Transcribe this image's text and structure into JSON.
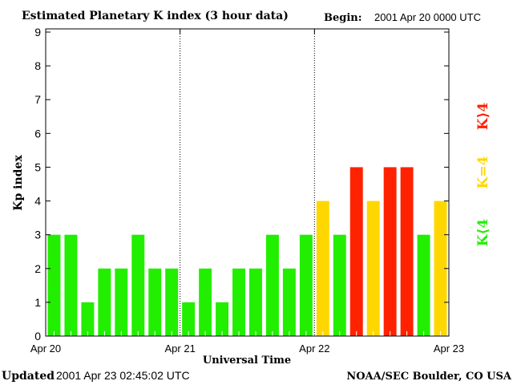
{
  "chart_data": {
    "type": "bar",
    "title": "Estimated Planetary K index (3 hour data)",
    "begin_label": "Begin:",
    "begin_value": "2001 Apr 20 0000 UTC",
    "xlabel": "Universal Time",
    "ylabel": "Kp index",
    "ylim": [
      0,
      9
    ],
    "yticks": [
      "0",
      "1",
      "2",
      "3",
      "4",
      "5",
      "6",
      "7",
      "8",
      "9"
    ],
    "xticks": [
      "Apr 20",
      "Apr 21",
      "Apr 22",
      "Apr 23"
    ],
    "interval_hours": 3,
    "values": [
      3,
      3,
      1,
      2,
      2,
      3,
      2,
      2,
      1,
      2,
      1,
      2,
      2,
      3,
      2,
      3,
      4,
      3,
      5,
      4,
      5,
      5,
      3,
      4
    ],
    "legend": [
      {
        "label": "K<4",
        "display": "K⟨4",
        "color": "#22ee00"
      },
      {
        "label": "K=4",
        "display": "K=4",
        "color": "#ffd700"
      },
      {
        "label": "K>4",
        "display": "K⟩4",
        "color": "#ff2200"
      }
    ],
    "legend_placement": "right",
    "grid": "vertical dotted day separators"
  },
  "footer": {
    "updated_label": "Updated",
    "updated_value": "2001 Apr 23 02:45:02 UTC",
    "source": "NOAA/SEC Boulder, CO USA"
  }
}
